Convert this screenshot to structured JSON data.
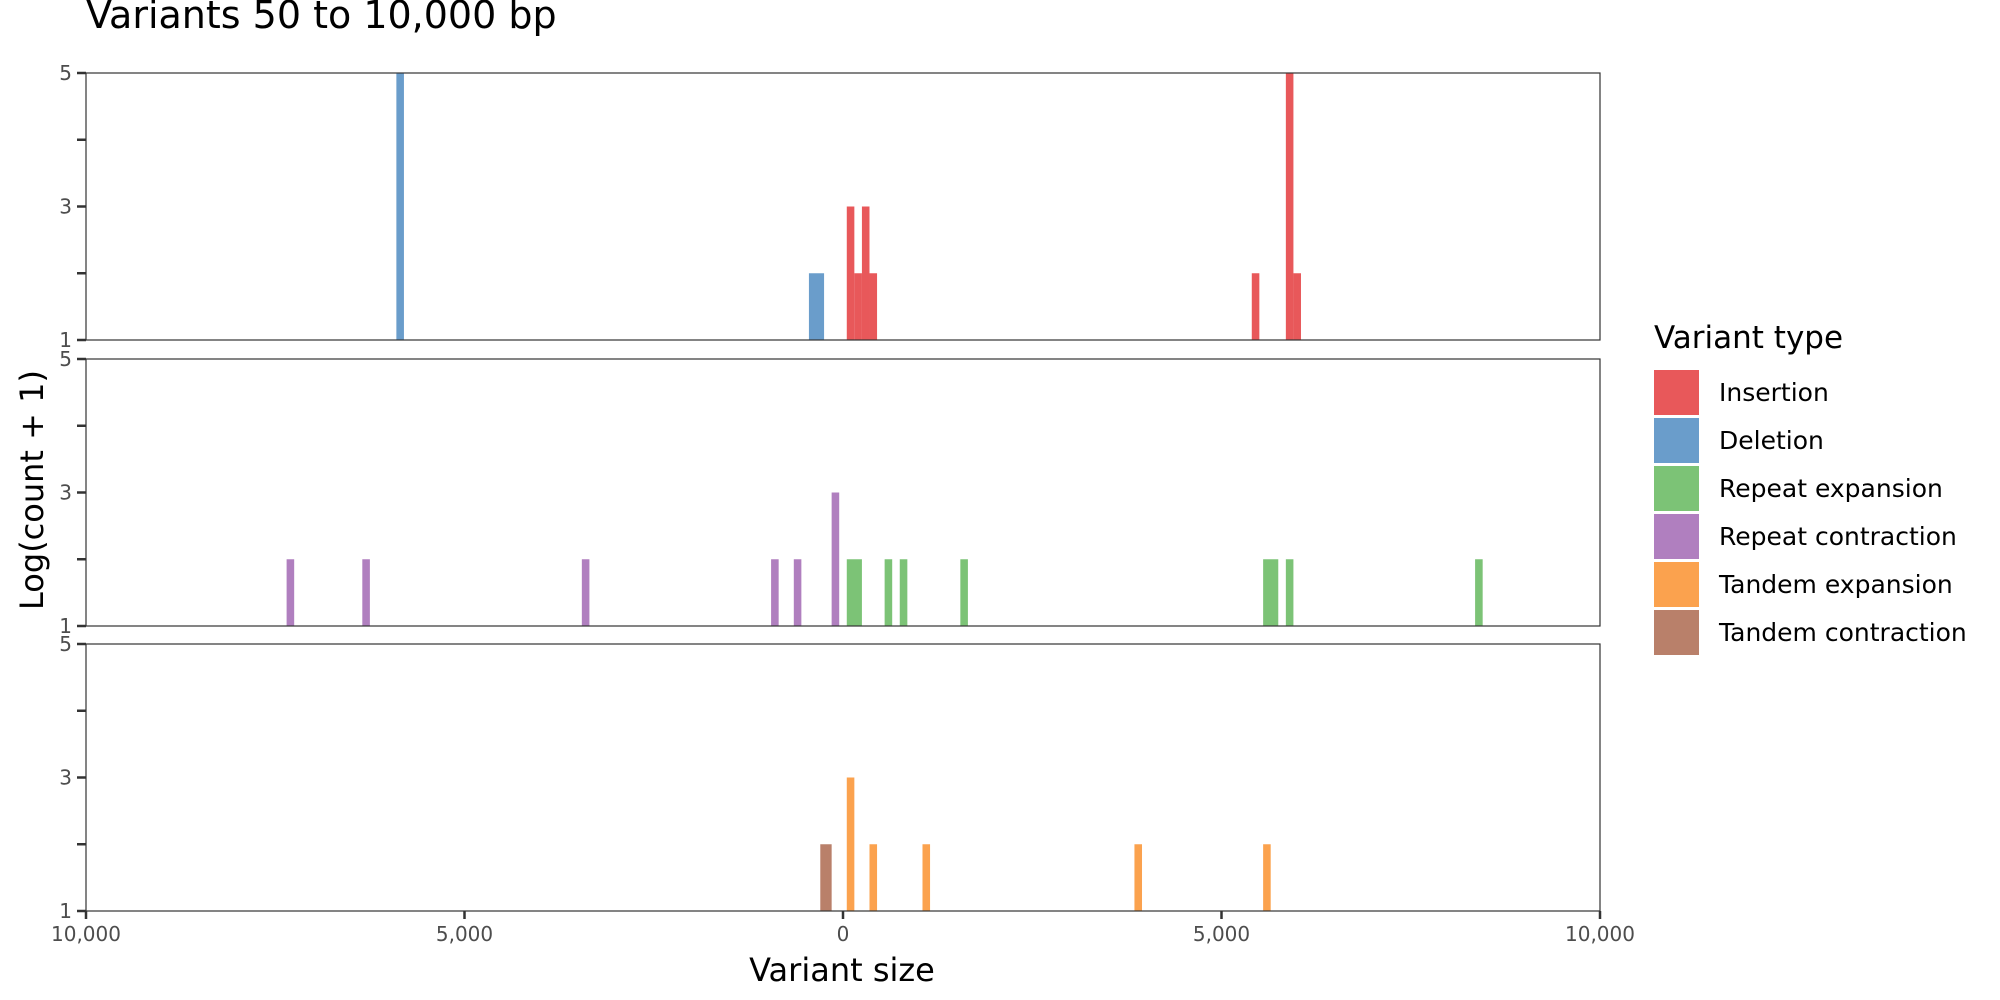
{
  "chart_data": {
    "type": "bar",
    "title": "Variants 50 to 10,000 bp",
    "xlabel": "Variant size",
    "ylabel": "Log(count + 1)",
    "xlim": [
      -10000,
      10000
    ],
    "x_tick_values": [
      -10000,
      -5000,
      0,
      5000,
      10000
    ],
    "x_tick_labels": [
      "10,000",
      "5,000",
      "0",
      "5,000",
      "10,000"
    ],
    "ylim": [
      1,
      5
    ],
    "y_tick_values": [
      1,
      3,
      5
    ],
    "y_tick_labels": [
      "1",
      "3",
      "5"
    ],
    "y_minor_ticks": [
      2,
      4
    ],
    "grid": false,
    "legend_position": "right",
    "legend_title": "Variant type",
    "legend": [
      {
        "name": "Insertion",
        "color": "#E8585A"
      },
      {
        "name": "Deletion",
        "color": "#6A9DCB"
      },
      {
        "name": "Repeat expansion",
        "color": "#7CC376"
      },
      {
        "name": "Repeat contraction",
        "color": "#B07FBF"
      },
      {
        "name": "Tandem expansion",
        "color": "#FBA24E"
      },
      {
        "name": "Tandem contraction",
        "color": "#B9806A"
      }
    ],
    "facets": [
      {
        "series": [
          {
            "name": "Deletion",
            "color": "#6A9DCB",
            "bars": [
              {
                "x0": -5900,
                "x1": -5800,
                "y": 5
              },
              {
                "x0": -450,
                "x1": -250,
                "y": 2
              }
            ]
          },
          {
            "name": "Insertion",
            "color": "#E8585A",
            "bars": [
              {
                "x0": 50,
                "x1": 150,
                "y": 3
              },
              {
                "x0": 150,
                "x1": 250,
                "y": 2
              },
              {
                "x0": 250,
                "x1": 350,
                "y": 3
              },
              {
                "x0": 350,
                "x1": 450,
                "y": 2
              },
              {
                "x0": 5400,
                "x1": 5500,
                "y": 2
              },
              {
                "x0": 5850,
                "x1": 5950,
                "y": 5
              },
              {
                "x0": 5950,
                "x1": 6050,
                "y": 2
              }
            ]
          }
        ]
      },
      {
        "series": [
          {
            "name": "Repeat contraction",
            "color": "#B07FBF",
            "bars": [
              {
                "x0": -7350,
                "x1": -7250,
                "y": 2
              },
              {
                "x0": -6350,
                "x1": -6250,
                "y": 2
              },
              {
                "x0": -3450,
                "x1": -3350,
                "y": 2
              },
              {
                "x0": -950,
                "x1": -850,
                "y": 2
              },
              {
                "x0": -650,
                "x1": -550,
                "y": 2
              },
              {
                "x0": -150,
                "x1": -50,
                "y": 3
              }
            ]
          },
          {
            "name": "Repeat expansion",
            "color": "#7CC376",
            "bars": [
              {
                "x0": 50,
                "x1": 250,
                "y": 2
              },
              {
                "x0": 550,
                "x1": 650,
                "y": 2
              },
              {
                "x0": 750,
                "x1": 850,
                "y": 2
              },
              {
                "x0": 1550,
                "x1": 1650,
                "y": 2
              },
              {
                "x0": 5550,
                "x1": 5750,
                "y": 2
              },
              {
                "x0": 5850,
                "x1": 5950,
                "y": 2
              },
              {
                "x0": 8350,
                "x1": 8450,
                "y": 2
              }
            ]
          }
        ]
      },
      {
        "series": [
          {
            "name": "Tandem contraction",
            "color": "#B9806A",
            "bars": [
              {
                "x0": -300,
                "x1": -150,
                "y": 2
              }
            ]
          },
          {
            "name": "Tandem expansion",
            "color": "#FBA24E",
            "bars": [
              {
                "x0": 50,
                "x1": 150,
                "y": 3
              },
              {
                "x0": 350,
                "x1": 450,
                "y": 2
              },
              {
                "x0": 1050,
                "x1": 1150,
                "y": 2
              },
              {
                "x0": 3850,
                "x1": 3950,
                "y": 2
              },
              {
                "x0": 5550,
                "x1": 5650,
                "y": 2
              }
            ]
          }
        ]
      }
    ]
  }
}
